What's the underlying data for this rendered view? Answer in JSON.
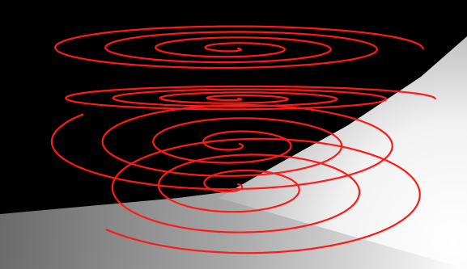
{
  "scene": {
    "subject": "red-spiral-curves-over-shaded-planes",
    "colors": {
      "background": "#000000",
      "curve": "#ff1a1a",
      "plane_light": "#ffffff",
      "plane_dark": "#5a5a5a"
    }
  }
}
